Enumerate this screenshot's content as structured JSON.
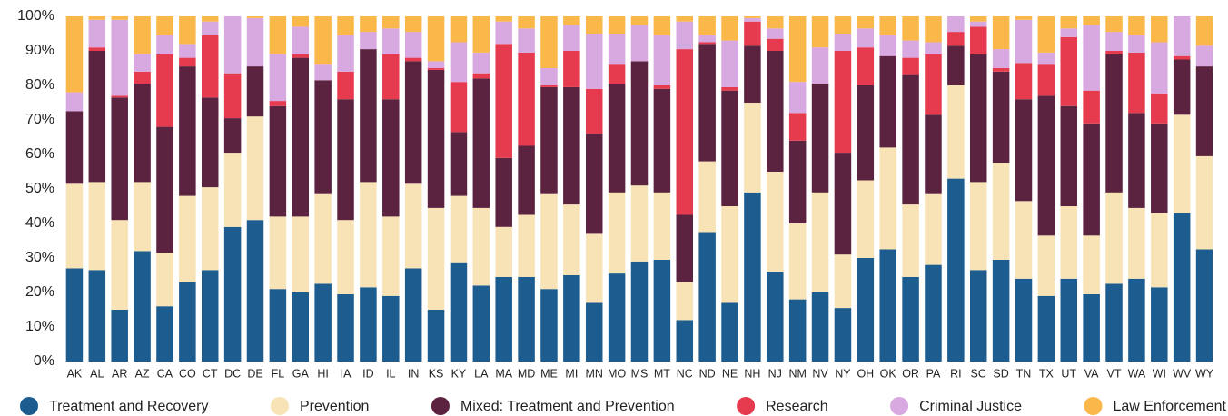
{
  "chart_data": {
    "type": "stacked_bar",
    "categories": [
      "AK",
      "AL",
      "AR",
      "AZ",
      "CA",
      "CO",
      "CT",
      "DC",
      "DE",
      "FL",
      "GA",
      "HI",
      "IA",
      "ID",
      "IL",
      "IN",
      "KS",
      "KY",
      "LA",
      "MA",
      "MD",
      "ME",
      "MI",
      "MN",
      "MO",
      "MS",
      "MT",
      "NC",
      "ND",
      "NE",
      "NH",
      "NJ",
      "NM",
      "NV",
      "NY",
      "OH",
      "OK",
      "OR",
      "PA",
      "RI",
      "SC",
      "SD",
      "TN",
      "TX",
      "UT",
      "VA",
      "VT",
      "WA",
      "WI",
      "WV",
      "WY"
    ],
    "series": [
      {
        "name": "Treatment and Recovery",
        "color": "#1c5c8f",
        "values": [
          27,
          26.5,
          15,
          32,
          16,
          23,
          26.5,
          39,
          41,
          21,
          20,
          22.5,
          19.5,
          21.5,
          19,
          27,
          15,
          28.5,
          22,
          24.5,
          24.5,
          21,
          25,
          17,
          25.5,
          29,
          29.5,
          12,
          37.5,
          17,
          49,
          26,
          18,
          20,
          15.5,
          30,
          32.5,
          24.5,
          28,
          53,
          26.5,
          29.5,
          24,
          19,
          24,
          19.5,
          22.5,
          24,
          21.5,
          43,
          32.5
        ]
      },
      {
        "name": "Prevention",
        "color": "#f7e3b5",
        "values": [
          24.5,
          25.5,
          26,
          20,
          15.5,
          25,
          24,
          21.5,
          30,
          21,
          22,
          26,
          21.5,
          30.5,
          23,
          24.5,
          29.5,
          19.5,
          22.5,
          14.5,
          18,
          27.5,
          20.5,
          20,
          23.5,
          22,
          19.5,
          11,
          20.5,
          28,
          26,
          29,
          22,
          29,
          15.5,
          22.5,
          29.5,
          21,
          20.5,
          27,
          25.5,
          28,
          22.5,
          17.5,
          21,
          17,
          26.5,
          20.5,
          21.5,
          28.5,
          27
        ]
      },
      {
        "name": "Mixed: Treatment and Prevention",
        "color": "#5c2340",
        "values": [
          21,
          38,
          35.5,
          28.5,
          36.5,
          37.5,
          26,
          10,
          14.5,
          32,
          46,
          33,
          35,
          38.5,
          34,
          35.5,
          40,
          18.5,
          37.5,
          20,
          20,
          31,
          34,
          29,
          31.5,
          36,
          30,
          19.5,
          34,
          33.5,
          16.5,
          35,
          24,
          31.5,
          29.5,
          27.5,
          26.5,
          37.5,
          23,
          11.5,
          37,
          26.5,
          29.5,
          40.5,
          29,
          32.5,
          40,
          27.5,
          26,
          16,
          26
        ]
      },
      {
        "name": "Research",
        "color": "#e63a4f",
        "values": [
          0,
          1,
          0.5,
          3.5,
          21,
          2.5,
          18,
          13,
          0,
          1.5,
          1,
          0,
          8,
          0,
          13,
          1,
          0.5,
          14.5,
          1.5,
          33,
          27,
          0.5,
          10.5,
          13,
          5.5,
          0,
          1,
          48,
          0.5,
          1,
          7,
          3.5,
          8,
          0,
          29.5,
          11,
          0,
          5,
          17.5,
          4,
          8,
          1,
          10.5,
          9,
          20,
          9.5,
          1,
          17.5,
          8.5,
          1,
          0
        ]
      },
      {
        "name": "Criminal Justice",
        "color": "#d8a8e0",
        "values": [
          5.5,
          8,
          22,
          5,
          5.5,
          4,
          4,
          16.5,
          14,
          13.5,
          8,
          4.5,
          10.5,
          5,
          7.5,
          7.5,
          2,
          11.5,
          6,
          6.5,
          7,
          5,
          7.5,
          16,
          9,
          10.5,
          14.5,
          8,
          2,
          13.5,
          1,
          3,
          9,
          10.5,
          5,
          5.5,
          6,
          5,
          3.5,
          4.5,
          1.5,
          5.5,
          12.5,
          3.5,
          2.5,
          19,
          5.5,
          5,
          15,
          11.5,
          6
        ]
      },
      {
        "name": "Law Enforcement",
        "color": "#fbb84a",
        "values": [
          22,
          1,
          1,
          11,
          5.5,
          8,
          1.5,
          0,
          0.5,
          11,
          3,
          14,
          5.5,
          4.5,
          3.5,
          4.5,
          13,
          7.5,
          10.5,
          1.5,
          3.5,
          15,
          2.5,
          5,
          5,
          2.5,
          5.5,
          1.5,
          5.5,
          7,
          0.5,
          3.5,
          19,
          9,
          5,
          3.5,
          5.5,
          7,
          7.5,
          0,
          1.5,
          9.5,
          1,
          10.5,
          3.5,
          2.5,
          4.5,
          5.5,
          7.5,
          0,
          8.5
        ]
      }
    ],
    "ylim": [
      0,
      100
    ],
    "yticks": [
      {
        "value": 0,
        "label": "0%"
      },
      {
        "value": 10,
        "label": "10%"
      },
      {
        "value": 20,
        "label": "20%"
      },
      {
        "value": 30,
        "label": "30%"
      },
      {
        "value": 40,
        "label": "40%"
      },
      {
        "value": 50,
        "label": "50%"
      },
      {
        "value": 60,
        "label": "60%"
      },
      {
        "value": 70,
        "label": "70%"
      },
      {
        "value": 80,
        "label": "80%"
      },
      {
        "value": 90,
        "label": "90%"
      },
      {
        "value": 100,
        "label": "100%"
      }
    ],
    "grid": false,
    "legend": "bottom"
  }
}
